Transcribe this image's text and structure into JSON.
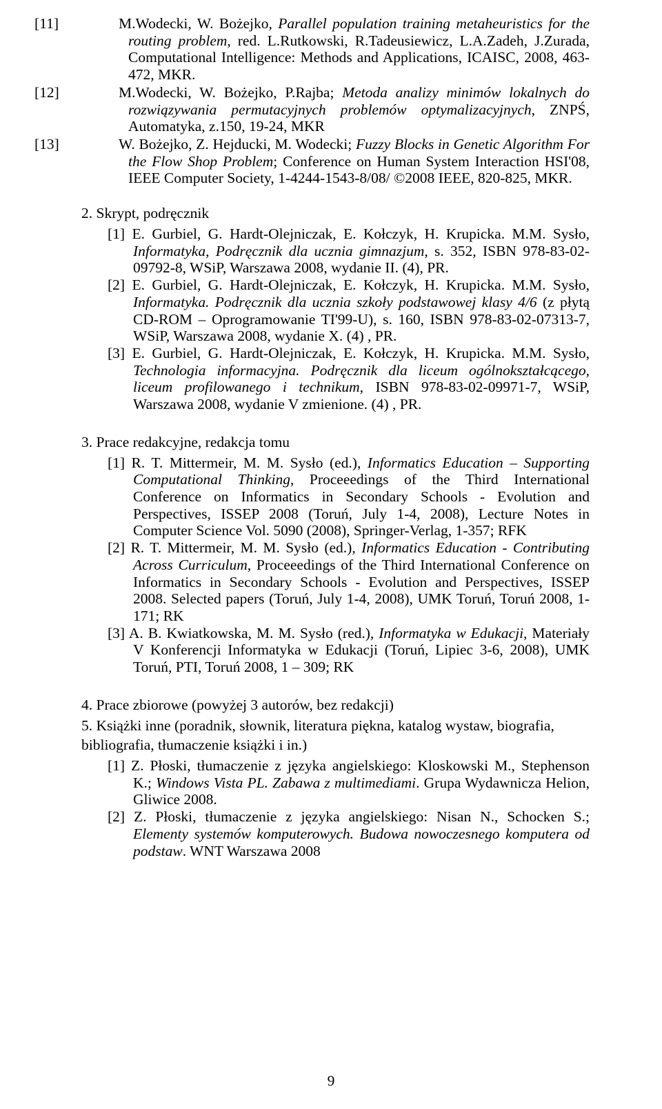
{
  "refs_top": [
    {
      "label": "[11]",
      "html": "M.Wodecki, W. Bożejko, <em>Parallel population training metaheuristics for the routing problem</em>, red. L.Rutkowski, R.Tadeusiewicz, L.A.Zadeh, J.Zurada, Computational Intelligence: Methods and Applications, ICAISC, 2008, 463-472, MKR."
    },
    {
      "label": "[12]",
      "html": "M.Wodecki, W. Bożejko, P.Rajba; <em>Metoda analizy minimów lokalnych do rozwiązywania permutacyjnych problemów optymalizacyjnych</em>, ZNPŚ, Automatyka, z.150, 19-24, MKR"
    },
    {
      "label": "[13]",
      "html": "W. Bożejko, Z. Hejducki, M. Wodecki; <em>Fuzzy Blocks in Genetic Algorithm For the Flow Shop Problem</em>; Conference on Human System Interaction HSI'08, IEEE Computer Society, 1-4244-1543-8/08/ ©2008 IEEE, 820-825, MKR."
    }
  ],
  "section2": {
    "heading": "2. Skrypt, podręcznik",
    "items": [
      {
        "label": "[1]",
        "html": "E. Gurbiel, G. Hardt-Olejniczak, E. Kołczyk, H. Krupicka. M.M. Sysło, <em>Informatyka, Podręcznik dla ucznia gimnazjum</em>, s. 352, ISBN 978-83-02-09792-8, WSiP, Warszawa 2008, wydanie II. (4), PR."
      },
      {
        "label": "[2]",
        "html": "E. Gurbiel, G. Hardt-Olejniczak, E. Kołczyk, H. Krupicka. M.M. Sysło, <em>Informatyka. Podręcznik dla ucznia szkoły podstawowej klasy 4/6</em> (z płytą CD-ROM – Oprogramowanie TI'99-U), s. 160, ISBN 978-83-02-07313-7, WSiP, Warszawa 2008, wydanie X. (4) , PR."
      },
      {
        "label": "[3]",
        "html": "E. Gurbiel, G. Hardt-Olejniczak, E. Kołczyk, H. Krupicka. M.M. Sysło, <em>Technologia informacyjna. Podręcznik dla liceum ogólnokształcącego, liceum profilowanego i technikum</em>, ISBN 978-83-02-09971-7, WSiP, Warszawa 2008, wydanie V zmienione. (4) , PR."
      }
    ]
  },
  "section3": {
    "heading": "3. Prace redakcyjne, redakcja tomu",
    "items": [
      {
        "label": "[1]",
        "html": "R. T. Mittermeir, M. M. Sysło (ed.), <em>Informatics Education – Supporting Computational Thinking,</em> Proceeedings of the Third International Conference on Informatics in Secondary Schools - Evolution and Perspectives, ISSEP 2008 (Toruń, July 1-4, 2008), Lecture Notes in Computer Science Vol. 5090 (2008), Springer-Verlag, 1-357; RFK"
      },
      {
        "label": "[2]",
        "html": "R. T. Mittermeir, M. M. Sysło (ed.), <em>Informatics Education - Contributing Across Curriculum,</em> Proceeedings of the Third International Conference on Informatics in Secondary Schools - Evolution and Perspectives, ISSEP 2008. Selected papers (Toruń, July 1-4, 2008), UMK Toruń, Toruń 2008, 1-171; RK"
      },
      {
        "label": "[3]",
        "html": "A. B. Kwiatkowska, M. M. Sysło (red.), <em>Informatyka w Edukacji,</em> Materiały V Konferencji Informatyka w Edukacji (Toruń, Lipiec 3-6, 2008), UMK Toruń, PTI, Toruń 2008, 1 – 309; RK"
      }
    ]
  },
  "section4": {
    "heading": "4. Prace zbiorowe (powyżej 3 autorów, bez redakcji)"
  },
  "section5": {
    "line1": "5. Książki inne (poradnik, słownik, literatura piękna, katalog wystaw, biografia,",
    "line2": "bibliografia, tłumaczenie książki i in.)",
    "items": [
      {
        "label": "[1]",
        "html": "Z. Płoski, tłumaczenie z języka angielskiego: Kloskowski M., Stephenson K.; <em>Windows Vista PL. Zabawa z multimediami</em>. Grupa Wydawnicza Helion, Gliwice 2008."
      },
      {
        "label": "[2]",
        "html": "Z. Płoski, tłumaczenie z języka angielskiego: Nisan N., Schocken S.; <em>Elementy systemów komputerowych. Budowa nowoczesnego komputera od podstaw</em>. WNT Warszawa 2008"
      }
    ]
  },
  "page_number": "9"
}
